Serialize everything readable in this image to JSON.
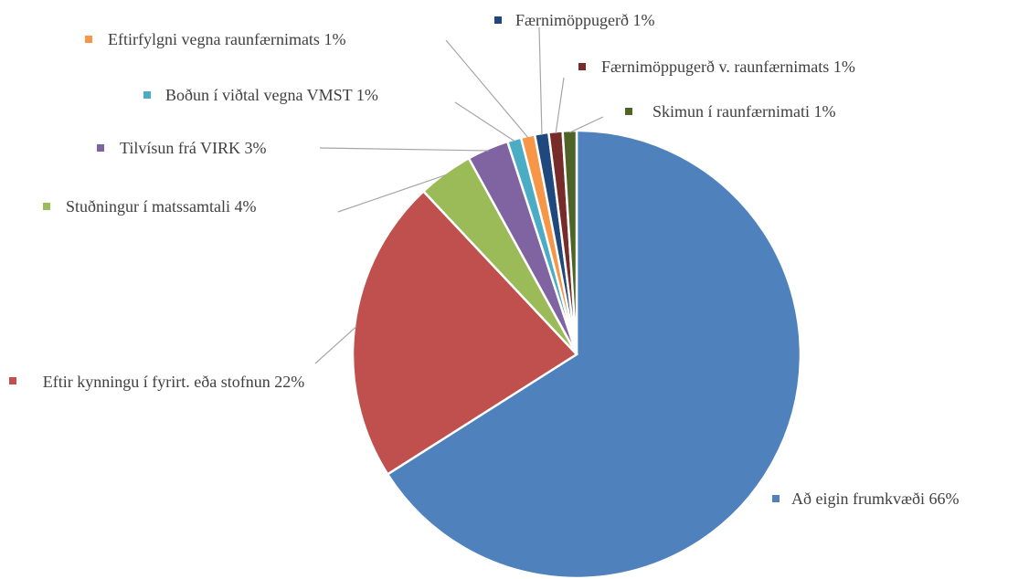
{
  "chart_data": {
    "type": "pie",
    "categories": [
      "Að eigin frumkvæði",
      "Eftir kynningu í fyrirt. eða stofnun",
      "Stuðningur í matssamtali",
      "Tilvísun frá VIRK",
      "Boðun í viðtal vegna VMST",
      "Eftirfylgni vegna raunfærnimats",
      "Færnimöppugerð",
      "Færnimöppugerð v. raunfærnimats",
      "Skimun í raunfærnimati"
    ],
    "values": [
      66,
      22,
      4,
      3,
      1,
      1,
      1,
      1,
      1
    ],
    "value_labels": [
      "66%",
      "22%",
      "4%",
      "3%",
      "1%",
      "1%",
      "1%",
      "1%",
      "1%"
    ],
    "colors": [
      "#4f81bd",
      "#c0504d",
      "#9bbb59",
      "#8064a2",
      "#4bacc6",
      "#f79646",
      "#1f497d",
      "#772c2a",
      "#4f6228"
    ]
  }
}
